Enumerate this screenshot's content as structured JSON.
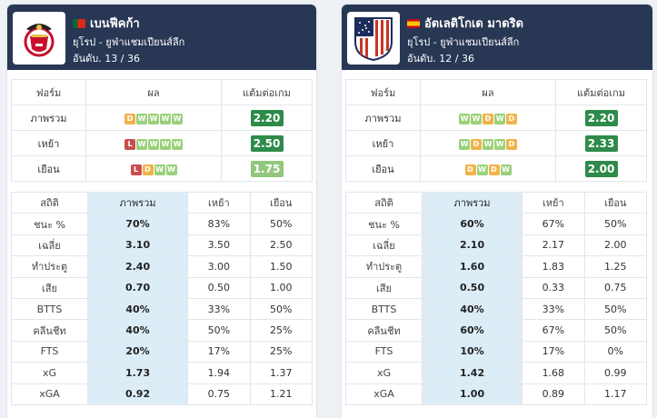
{
  "cards": [
    {
      "team": "เบนฟีคก้า",
      "flag": "pt",
      "league": "ยุโรป - ยูฟ่าแชมเปียนส์ลีก",
      "rank": "อันดับ. 13 / 36",
      "form_headers": [
        "ฟอร์ม",
        "ผล",
        "แต้มต่อเกม"
      ],
      "form_rows": [
        {
          "label": "ภาพรวม",
          "results": [
            "D",
            "W",
            "W",
            "W",
            "W"
          ],
          "ppg": "2.20",
          "ppg_style": "dark"
        },
        {
          "label": "เหย้า",
          "results": [
            "L",
            "W",
            "W",
            "W",
            "W"
          ],
          "ppg": "2.50",
          "ppg_style": "dark"
        },
        {
          "label": "เยือน",
          "results": [
            "L",
            "D",
            "W",
            "W"
          ],
          "ppg": "1.75",
          "ppg_style": "light"
        }
      ],
      "stats_headers": [
        "สถิติ",
        "ภาพรวม",
        "เหย้า",
        "เยือน"
      ],
      "stats_rows": [
        {
          "label": "ชนะ %",
          "overall": "70%",
          "home": "83%",
          "away": "50%"
        },
        {
          "label": "เฉลี่ย",
          "overall": "3.10",
          "home": "3.50",
          "away": "2.50"
        },
        {
          "label": "ทำประตู",
          "overall": "2.40",
          "home": "3.00",
          "away": "1.50"
        },
        {
          "label": "เสีย",
          "overall": "0.70",
          "home": "0.50",
          "away": "1.00"
        },
        {
          "label": "BTTS",
          "overall": "40%",
          "home": "33%",
          "away": "50%"
        },
        {
          "label": "คลีนชีท",
          "overall": "40%",
          "home": "50%",
          "away": "25%"
        },
        {
          "label": "FTS",
          "overall": "20%",
          "home": "17%",
          "away": "25%"
        },
        {
          "label": "xG",
          "overall": "1.73",
          "home": "1.94",
          "away": "1.37"
        },
        {
          "label": "xGA",
          "overall": "0.92",
          "home": "0.75",
          "away": "1.21"
        }
      ]
    },
    {
      "team": "อัตเลติโกเด มาดริด",
      "flag": "es",
      "league": "ยุโรป - ยูฟ่าแชมเปียนส์ลีก",
      "rank": "อันดับ. 12 / 36",
      "form_headers": [
        "ฟอร์ม",
        "ผล",
        "แต้มต่อเกม"
      ],
      "form_rows": [
        {
          "label": "ภาพรวม",
          "results": [
            "W",
            "W",
            "D",
            "W",
            "D"
          ],
          "ppg": "2.20",
          "ppg_style": "dark"
        },
        {
          "label": "เหย้า",
          "results": [
            "W",
            "D",
            "W",
            "W",
            "D"
          ],
          "ppg": "2.33",
          "ppg_style": "dark"
        },
        {
          "label": "เยือน",
          "results": [
            "D",
            "W",
            "D",
            "W"
          ],
          "ppg": "2.00",
          "ppg_style": "dark"
        }
      ],
      "stats_headers": [
        "สถิติ",
        "ภาพรวม",
        "เหย้า",
        "เยือน"
      ],
      "stats_rows": [
        {
          "label": "ชนะ %",
          "overall": "60%",
          "home": "67%",
          "away": "50%"
        },
        {
          "label": "เฉลี่ย",
          "overall": "2.10",
          "home": "2.17",
          "away": "2.00"
        },
        {
          "label": "ทำประตู",
          "overall": "1.60",
          "home": "1.83",
          "away": "1.25"
        },
        {
          "label": "เสีย",
          "overall": "0.50",
          "home": "0.33",
          "away": "0.75"
        },
        {
          "label": "BTTS",
          "overall": "40%",
          "home": "33%",
          "away": "50%"
        },
        {
          "label": "คลีนชีท",
          "overall": "60%",
          "home": "67%",
          "away": "50%"
        },
        {
          "label": "FTS",
          "overall": "10%",
          "home": "17%",
          "away": "0%"
        },
        {
          "label": "xG",
          "overall": "1.42",
          "home": "1.68",
          "away": "0.99"
        },
        {
          "label": "xGA",
          "overall": "1.00",
          "home": "0.89",
          "away": "1.17"
        }
      ]
    }
  ]
}
